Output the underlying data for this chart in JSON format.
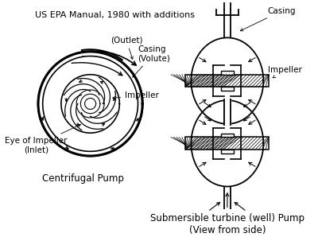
{
  "title": "US EPA Manual, 1980 with additions",
  "title_fontsize": 8.0,
  "centrifugal_label": "Centrifugal Pump",
  "submersible_label": "Submersible turbine (well) Pump\n(View from side)",
  "color": "#000000",
  "bg_color": "#ffffff"
}
